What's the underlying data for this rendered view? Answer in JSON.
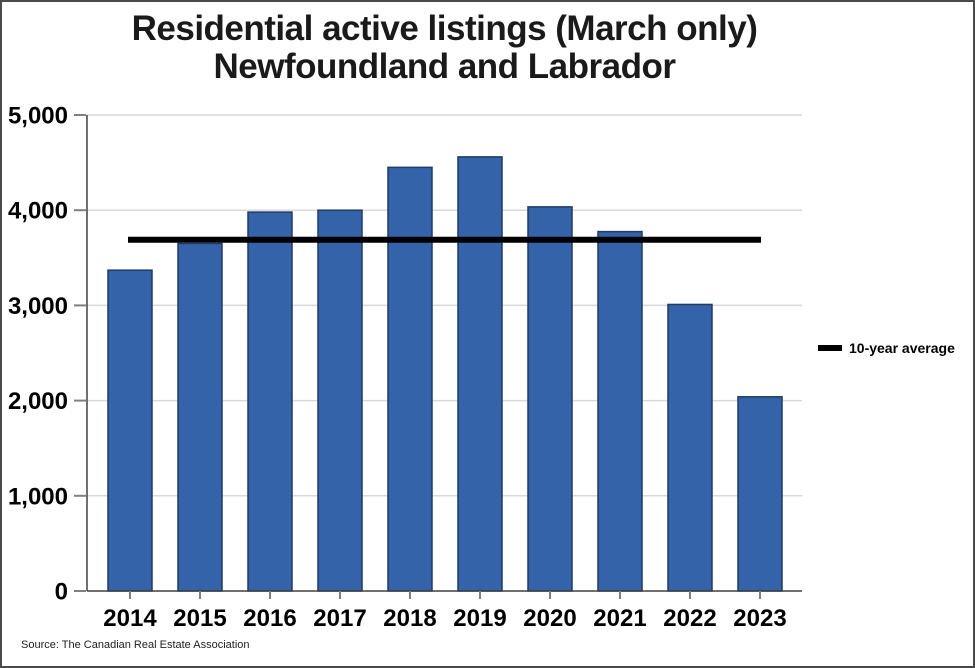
{
  "title": {
    "line1": "Residential active listings (March only)",
    "line2": "Newfoundland and Labrador"
  },
  "legend": {
    "label": "10-year average",
    "swatch_color": "#000000"
  },
  "source": "Source: The Canadian Real Estate Association",
  "colors": {
    "bar_fill": "#3563A9",
    "bar_border": "#1E3A66",
    "gridline": "#D9D9D9",
    "axis": "#404040",
    "tick": "#808080",
    "avg_line": "#000000",
    "text": "#000000"
  },
  "chart_data": {
    "type": "bar",
    "title": "Residential active listings (March only) — Newfoundland and Labrador",
    "categories": [
      "2014",
      "2015",
      "2016",
      "2017",
      "2018",
      "2019",
      "2020",
      "2021",
      "2022",
      "2023"
    ],
    "series": [
      {
        "name": "Residential active listings (March)",
        "values": [
          3370,
          3650,
          3980,
          4000,
          4450,
          4560,
          4035,
          3775,
          3010,
          2040
        ]
      }
    ],
    "average_line": {
      "label": "10-year average",
      "value": 3690
    },
    "xlabel": "",
    "ylabel": "",
    "ylim": [
      0,
      5000
    ],
    "ytick_interval": 1000,
    "ytick_labels": [
      "0",
      "1,000",
      "2,000",
      "3,000",
      "4,000",
      "5,000"
    ],
    "grid": true,
    "legend_position": "right"
  }
}
